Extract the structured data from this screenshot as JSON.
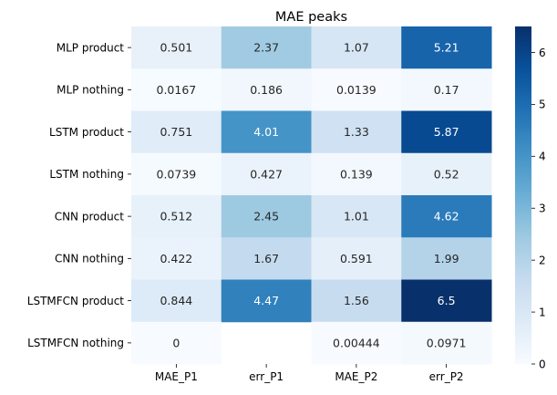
{
  "chart_data": {
    "type": "heatmap",
    "title": "MAE peaks",
    "columns": [
      "MAE_P1",
      "err_P1",
      "MAE_P2",
      "err_P2"
    ],
    "rows": [
      "MLP product",
      "MLP nothing",
      "LSTM product",
      "LSTM nothing",
      "CNN product",
      "CNN nothing",
      "LSTMFCN product",
      "LSTMFCN nothing"
    ],
    "values": [
      [
        0.501,
        2.37,
        1.07,
        5.21
      ],
      [
        0.0167,
        0.186,
        0.0139,
        0.17
      ],
      [
        0.751,
        4.01,
        1.33,
        5.87
      ],
      [
        0.0739,
        0.427,
        0.139,
        0.52
      ],
      [
        0.512,
        2.45,
        1.01,
        4.62
      ],
      [
        0.422,
        1.67,
        0.591,
        1.99
      ],
      [
        0.844,
        4.47,
        1.56,
        6.5
      ],
      [
        0,
        null,
        0.00444,
        0.0971
      ]
    ],
    "labels": [
      [
        "0.501",
        "2.37",
        "1.07",
        "5.21"
      ],
      [
        "0.0167",
        "0.186",
        "0.0139",
        "0.17"
      ],
      [
        "0.751",
        "4.01",
        "1.33",
        "5.87"
      ],
      [
        "0.0739",
        "0.427",
        "0.139",
        "0.52"
      ],
      [
        "0.512",
        "2.45",
        "1.01",
        "4.62"
      ],
      [
        "0.422",
        "1.67",
        "0.591",
        "1.99"
      ],
      [
        "0.844",
        "4.47",
        "1.56",
        "6.5"
      ],
      [
        "0",
        "",
        "0.00444",
        "0.0971"
      ]
    ],
    "colormap": "Blues",
    "vmin": 0,
    "vmax": 6.5,
    "colorbar_ticks": [
      "0",
      "1",
      "2",
      "3",
      "4",
      "5",
      "6"
    ]
  }
}
